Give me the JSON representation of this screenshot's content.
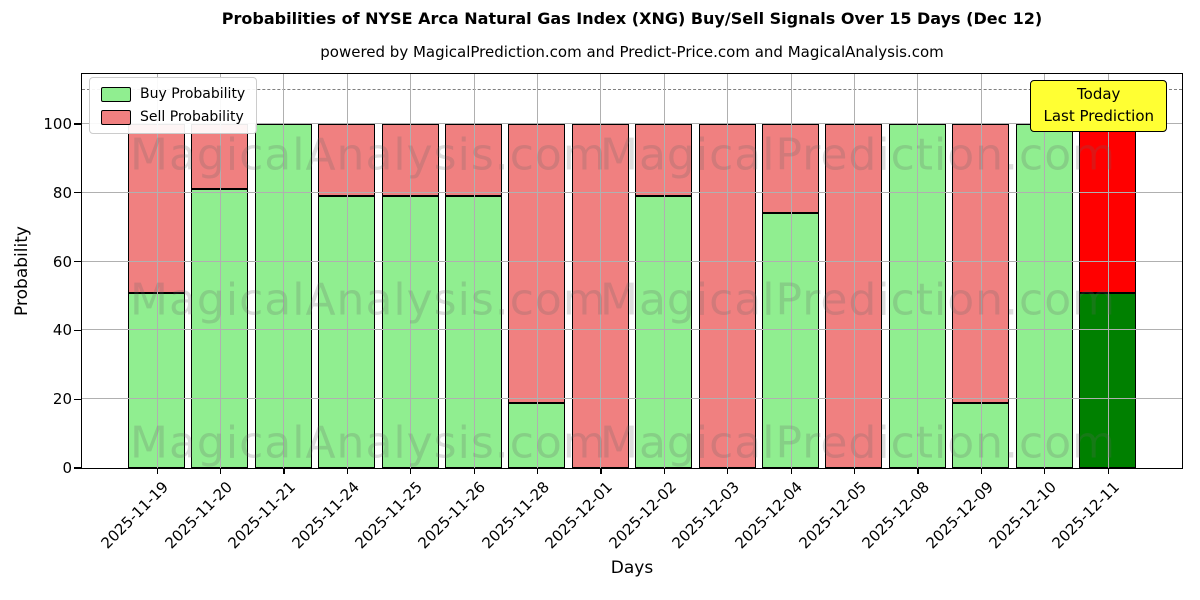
{
  "title": "Probabilities of NYSE Arca Natural Gas Index (XNG) Buy/Sell Signals Over 15 Days (Dec 12)",
  "subtitle": "powered by MagicalPrediction.com and Predict-Price.com and MagicalAnalysis.com",
  "legend": {
    "items": [
      {
        "label": "Buy Probability",
        "color": "#90ee90"
      },
      {
        "label": "Sell Probability",
        "color": "#f08080"
      }
    ]
  },
  "annotation": {
    "line1": "Today",
    "line2": "Last Prediction",
    "bg_color": "#ffff33"
  },
  "watermarks": {
    "left": "MagicalAnalysis.com",
    "right": "MagicalPrediction.com"
  },
  "chart_data": {
    "type": "bar",
    "stacked": true,
    "title": "Probabilities of NYSE Arca Natural Gas Index (XNG) Buy/Sell Signals Over 15 Days (Dec 12)",
    "xlabel": "Days",
    "ylabel": "Probability",
    "categories": [
      "2025-11-19",
      "2025-11-20",
      "2025-11-21",
      "2025-11-24",
      "2025-11-25",
      "2025-11-26",
      "2025-11-28",
      "2025-12-01",
      "2025-12-02",
      "2025-12-03",
      "2025-12-04",
      "2025-12-05",
      "2025-12-08",
      "2025-12-09",
      "2025-12-10",
      "2025-12-11"
    ],
    "series": [
      {
        "name": "Buy Probability",
        "color": "#90ee90",
        "today_color": "#008000",
        "values": [
          51,
          81,
          100,
          79,
          79,
          79,
          19,
          0,
          79,
          0,
          74,
          0,
          100,
          19,
          100,
          51
        ]
      },
      {
        "name": "Sell Probability",
        "color": "#f08080",
        "today_color": "#ff0000",
        "values": [
          49,
          19,
          0,
          21,
          21,
          21,
          81,
          100,
          21,
          100,
          26,
          100,
          0,
          81,
          0,
          49
        ]
      }
    ],
    "yticks": [
      0,
      20,
      40,
      60,
      80,
      100
    ],
    "ylim": [
      0,
      115
    ],
    "dashed_line_y": 110,
    "grid": true,
    "legend_position": "upper-left",
    "today_annotation_index": 15
  }
}
